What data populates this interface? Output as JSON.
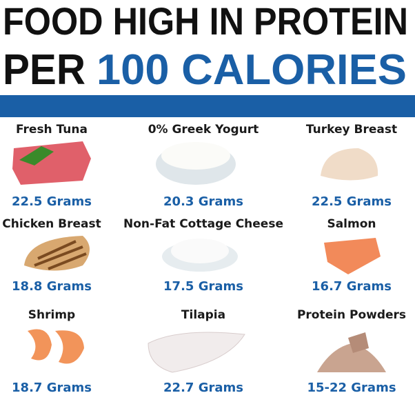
{
  "header": {
    "line1": "FOOD HIGH IN PROTEIN",
    "line2_prefix": "PER",
    "line2_highlight": "100 CALORIES"
  },
  "items": [
    {
      "name": "Fresh Tuna",
      "amount": "22.5 Grams"
    },
    {
      "name": "0% Greek Yogurt",
      "amount": "20.3 Grams"
    },
    {
      "name": "Turkey Breast",
      "amount": "22.5 Grams"
    },
    {
      "name": "Chicken Breast",
      "amount": "18.8 Grams"
    },
    {
      "name": "Non-Fat Cottage Cheese",
      "amount": "17.5 Grams"
    },
    {
      "name": "Salmon",
      "amount": "16.7 Grams"
    },
    {
      "name": "Shrimp",
      "amount": "18.7 Grams"
    },
    {
      "name": "Tilapia",
      "amount": "22.7 Grams"
    },
    {
      "name": "Protein Powders",
      "amount": "15-22 Grams"
    }
  ]
}
